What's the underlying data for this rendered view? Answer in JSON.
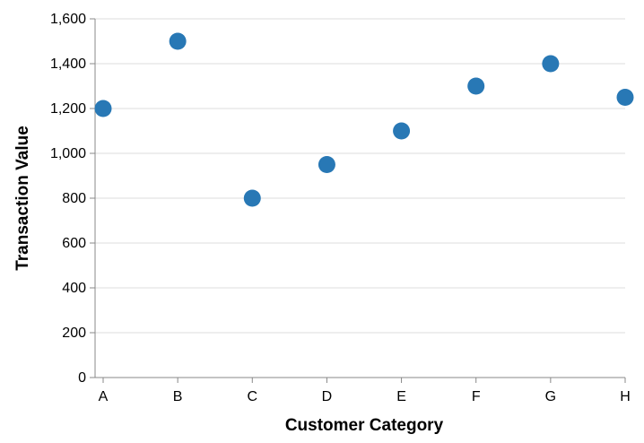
{
  "chart_data": {
    "type": "scatter",
    "title": "",
    "xlabel": "Customer Category",
    "ylabel": "Transaction Value",
    "categories": [
      "A",
      "B",
      "C",
      "D",
      "E",
      "F",
      "G",
      "H"
    ],
    "values": [
      1200,
      1500,
      800,
      950,
      1100,
      1300,
      1400,
      1250
    ],
    "ylim": [
      0,
      1600
    ],
    "yticks": [
      0,
      200,
      400,
      600,
      800,
      1000,
      1200,
      1400,
      1600
    ],
    "ytick_labels": [
      "0",
      "200",
      "400",
      "600",
      "800",
      "1,000",
      "1,200",
      "1,400",
      "1,600"
    ],
    "grid": true,
    "point_color": "#2878b5"
  }
}
